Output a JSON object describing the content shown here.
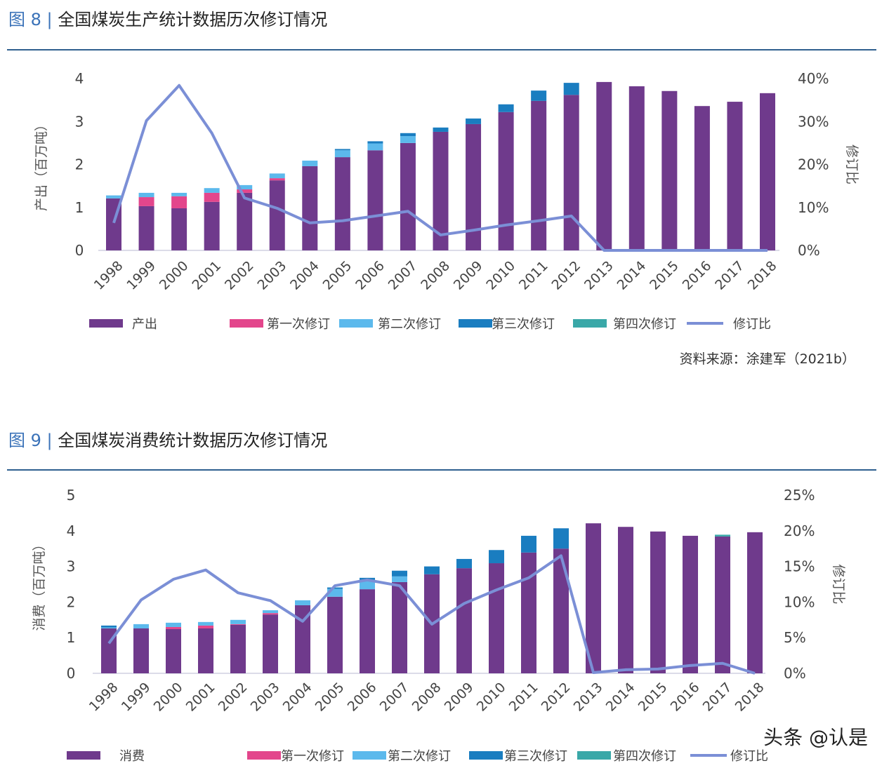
{
  "figures": [
    {
      "prefix": "图 8 |",
      "title": "全国煤炭生产统计数据历次修订情况"
    },
    {
      "prefix": "图 9 |",
      "title": "全国煤炭消费统计数据历次修订情况"
    }
  ],
  "source": "资料来源：涂建军（2021b）",
  "watermark": "头条 @认是",
  "colors": {
    "base": "#6f3a8c",
    "rev1": "#e3468c",
    "rev2": "#5cb9ec",
    "rev3": "#1a7dc0",
    "rev4": "#3aa8a8",
    "ratio": "#7b8fd6",
    "title_accent": "#3a72b8"
  },
  "chart_data": [
    {
      "type": "bar",
      "stacked": true,
      "categories": [
        "1998",
        "1999",
        "2000",
        "2001",
        "2002",
        "2003",
        "2004",
        "2005",
        "2006",
        "2007",
        "2008",
        "2009",
        "2010",
        "2011",
        "2012",
        "2013",
        "2014",
        "2015",
        "2016",
        "2017",
        "2018"
      ],
      "ylabel": "产出（百万吨）",
      "y2label": "修订比",
      "ylim": [
        0,
        4
      ],
      "yticks": [
        "0",
        "1",
        "2",
        "3",
        "4"
      ],
      "y2lim": [
        0,
        40
      ],
      "y2ticks": [
        "0%",
        "10%",
        "20%",
        "30%",
        "40%"
      ],
      "grid": false,
      "legend_position": "bottom",
      "series": [
        {
          "name": "产出",
          "values": [
            1.21,
            1.03,
            0.98,
            1.13,
            1.34,
            1.63,
            1.96,
            2.17,
            2.33,
            2.5,
            2.76,
            2.94,
            3.22,
            3.48,
            3.62,
            3.92,
            3.82,
            3.71,
            3.36,
            3.46,
            3.66
          ]
        },
        {
          "name": "第一次修订",
          "values": [
            0,
            0.21,
            0.28,
            0.21,
            0.08,
            0.05,
            0,
            0,
            0,
            0,
            0,
            0,
            0,
            0,
            0,
            0,
            0,
            0,
            0,
            0,
            0
          ]
        },
        {
          "name": "第二次修订",
          "values": [
            0.07,
            0.1,
            0.08,
            0.11,
            0.1,
            0.11,
            0.13,
            0.16,
            0.16,
            0.16,
            0,
            0,
            0,
            0,
            0,
            0,
            0,
            0,
            0,
            0,
            0
          ]
        },
        {
          "name": "第三次修订",
          "values": [
            0,
            0,
            0,
            0,
            0,
            0,
            0,
            0.03,
            0.05,
            0.07,
            0.1,
            0.13,
            0.18,
            0.24,
            0.28,
            0,
            0,
            0,
            0,
            0,
            0
          ]
        },
        {
          "name": "第四次修订",
          "values": [
            0,
            0,
            0,
            0,
            0,
            0,
            0,
            0,
            0,
            0,
            0,
            0,
            0,
            0,
            0,
            0,
            0,
            0,
            0,
            0,
            0
          ]
        },
        {
          "name": "修订比",
          "type": "line",
          "axis": "right",
          "values": [
            6.4,
            30.2,
            38.4,
            27.3,
            12.2,
            9.8,
            6.4,
            6.9,
            8.0,
            9.1,
            3.6,
            4.7,
            5.9,
            6.9,
            8.0,
            0,
            0,
            0,
            0,
            0,
            0
          ]
        }
      ]
    },
    {
      "type": "bar",
      "stacked": true,
      "categories": [
        "1998",
        "1999",
        "2000",
        "2001",
        "2002",
        "2003",
        "2004",
        "2005",
        "2006",
        "2007",
        "2008",
        "2009",
        "2010",
        "2011",
        "2012",
        "2013",
        "2014",
        "2015",
        "2016",
        "2017",
        "2018"
      ],
      "ylabel": "消费（百万吨）",
      "y2label": "修订比",
      "ylim": [
        0,
        5
      ],
      "yticks": [
        "0",
        "1",
        "2",
        "3",
        "4",
        "5"
      ],
      "y2lim": [
        0,
        25
      ],
      "y2ticks": [
        "0%",
        "5%",
        "10%",
        "15%",
        "20%",
        "25%"
      ],
      "grid": false,
      "legend_position": "bottom",
      "series": [
        {
          "name": "消费",
          "values": [
            1.26,
            1.26,
            1.24,
            1.26,
            1.36,
            1.65,
            1.91,
            2.15,
            2.36,
            2.56,
            2.78,
            2.95,
            3.09,
            3.39,
            3.5,
            4.21,
            4.11,
            3.98,
            3.86,
            3.84,
            3.96
          ]
        },
        {
          "name": "第一次修订",
          "values": [
            0,
            0,
            0.06,
            0.08,
            0.02,
            0.04,
            0,
            0,
            0,
            0,
            0,
            0,
            0,
            0,
            0,
            0,
            0,
            0,
            0,
            0,
            0
          ]
        },
        {
          "name": "第二次修订",
          "values": [
            0.03,
            0.12,
            0.12,
            0.1,
            0.12,
            0.08,
            0.14,
            0.22,
            0.26,
            0.16,
            0,
            0,
            0,
            0,
            0,
            0,
            0,
            0,
            0,
            0,
            0
          ]
        },
        {
          "name": "第三次修订",
          "values": [
            0.05,
            0,
            0,
            0,
            0,
            0,
            0,
            0.04,
            0.06,
            0.16,
            0.22,
            0.26,
            0.37,
            0.47,
            0.57,
            0,
            0,
            0,
            0,
            0,
            0
          ]
        },
        {
          "name": "第四次修订",
          "values": [
            0,
            0,
            0,
            0,
            0,
            0,
            0,
            0,
            0,
            0,
            0,
            0,
            0,
            0,
            0,
            0,
            0,
            0,
            0,
            0.05,
            0
          ]
        },
        {
          "name": "修订比",
          "type": "line",
          "axis": "right",
          "values": [
            4.2,
            10.3,
            13.2,
            14.5,
            11.3,
            10.2,
            7.3,
            12.3,
            13.1,
            12.3,
            6.9,
            9.8,
            11.7,
            13.4,
            16.5,
            0.1,
            0.5,
            0.6,
            1.1,
            1.4,
            0
          ]
        }
      ]
    }
  ]
}
